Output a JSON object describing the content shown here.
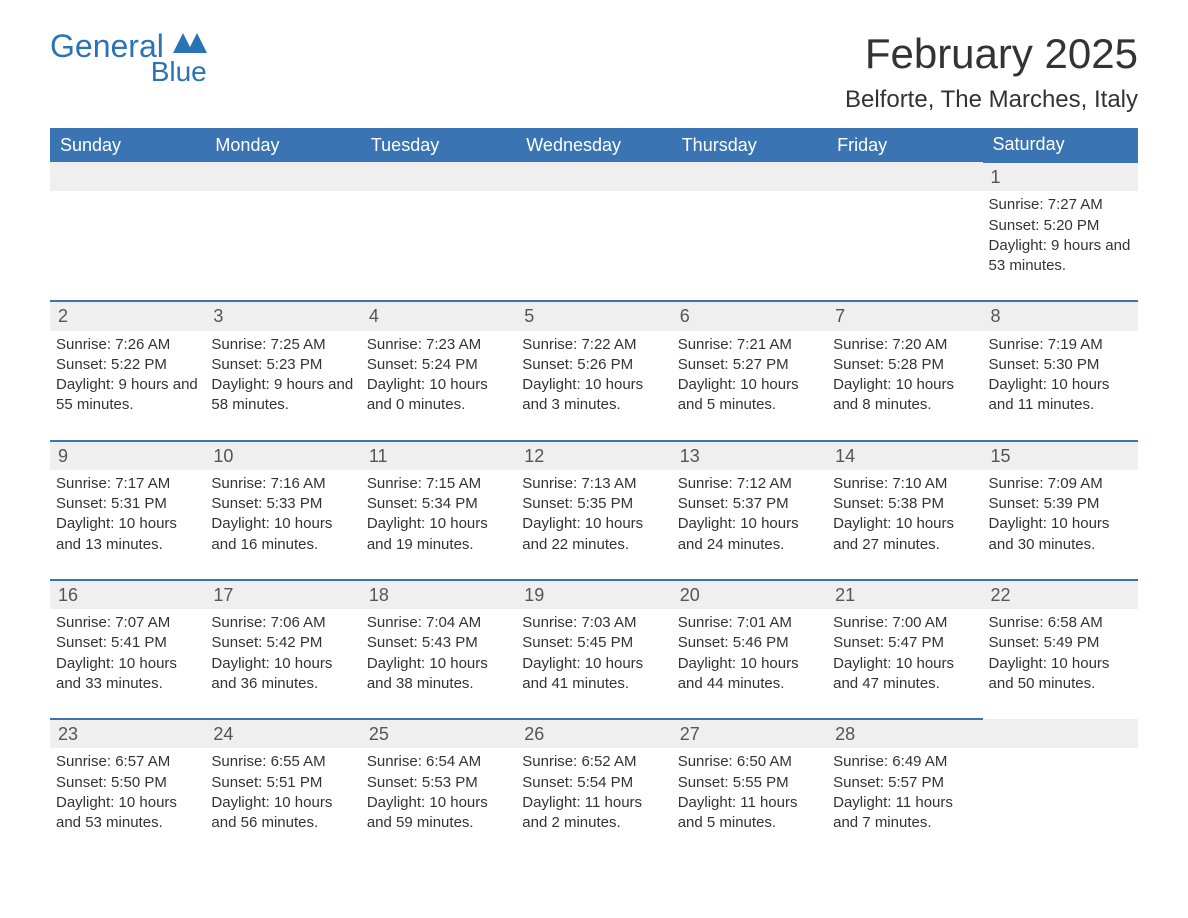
{
  "logo": {
    "word1": "General",
    "word2": "Blue",
    "brand_color": "#2b73b7"
  },
  "header": {
    "month_title": "February 2025",
    "location": "Belforte, The Marches, Italy"
  },
  "calendar": {
    "header_bg": "#3a74b3",
    "header_fg": "#ffffff",
    "daynum_bg": "#efefef",
    "daynum_border": "#3a74b3",
    "columns": [
      "Sunday",
      "Monday",
      "Tuesday",
      "Wednesday",
      "Thursday",
      "Friday",
      "Saturday"
    ],
    "weeks": [
      [
        null,
        null,
        null,
        null,
        null,
        null,
        {
          "day": "1",
          "sunrise": "Sunrise: 7:27 AM",
          "sunset": "Sunset: 5:20 PM",
          "daylight": "Daylight: 9 hours and 53 minutes."
        }
      ],
      [
        {
          "day": "2",
          "sunrise": "Sunrise: 7:26 AM",
          "sunset": "Sunset: 5:22 PM",
          "daylight": "Daylight: 9 hours and 55 minutes."
        },
        {
          "day": "3",
          "sunrise": "Sunrise: 7:25 AM",
          "sunset": "Sunset: 5:23 PM",
          "daylight": "Daylight: 9 hours and 58 minutes."
        },
        {
          "day": "4",
          "sunrise": "Sunrise: 7:23 AM",
          "sunset": "Sunset: 5:24 PM",
          "daylight": "Daylight: 10 hours and 0 minutes."
        },
        {
          "day": "5",
          "sunrise": "Sunrise: 7:22 AM",
          "sunset": "Sunset: 5:26 PM",
          "daylight": "Daylight: 10 hours and 3 minutes."
        },
        {
          "day": "6",
          "sunrise": "Sunrise: 7:21 AM",
          "sunset": "Sunset: 5:27 PM",
          "daylight": "Daylight: 10 hours and 5 minutes."
        },
        {
          "day": "7",
          "sunrise": "Sunrise: 7:20 AM",
          "sunset": "Sunset: 5:28 PM",
          "daylight": "Daylight: 10 hours and 8 minutes."
        },
        {
          "day": "8",
          "sunrise": "Sunrise: 7:19 AM",
          "sunset": "Sunset: 5:30 PM",
          "daylight": "Daylight: 10 hours and 11 minutes."
        }
      ],
      [
        {
          "day": "9",
          "sunrise": "Sunrise: 7:17 AM",
          "sunset": "Sunset: 5:31 PM",
          "daylight": "Daylight: 10 hours and 13 minutes."
        },
        {
          "day": "10",
          "sunrise": "Sunrise: 7:16 AM",
          "sunset": "Sunset: 5:33 PM",
          "daylight": "Daylight: 10 hours and 16 minutes."
        },
        {
          "day": "11",
          "sunrise": "Sunrise: 7:15 AM",
          "sunset": "Sunset: 5:34 PM",
          "daylight": "Daylight: 10 hours and 19 minutes."
        },
        {
          "day": "12",
          "sunrise": "Sunrise: 7:13 AM",
          "sunset": "Sunset: 5:35 PM",
          "daylight": "Daylight: 10 hours and 22 minutes."
        },
        {
          "day": "13",
          "sunrise": "Sunrise: 7:12 AM",
          "sunset": "Sunset: 5:37 PM",
          "daylight": "Daylight: 10 hours and 24 minutes."
        },
        {
          "day": "14",
          "sunrise": "Sunrise: 7:10 AM",
          "sunset": "Sunset: 5:38 PM",
          "daylight": "Daylight: 10 hours and 27 minutes."
        },
        {
          "day": "15",
          "sunrise": "Sunrise: 7:09 AM",
          "sunset": "Sunset: 5:39 PM",
          "daylight": "Daylight: 10 hours and 30 minutes."
        }
      ],
      [
        {
          "day": "16",
          "sunrise": "Sunrise: 7:07 AM",
          "sunset": "Sunset: 5:41 PM",
          "daylight": "Daylight: 10 hours and 33 minutes."
        },
        {
          "day": "17",
          "sunrise": "Sunrise: 7:06 AM",
          "sunset": "Sunset: 5:42 PM",
          "daylight": "Daylight: 10 hours and 36 minutes."
        },
        {
          "day": "18",
          "sunrise": "Sunrise: 7:04 AM",
          "sunset": "Sunset: 5:43 PM",
          "daylight": "Daylight: 10 hours and 38 minutes."
        },
        {
          "day": "19",
          "sunrise": "Sunrise: 7:03 AM",
          "sunset": "Sunset: 5:45 PM",
          "daylight": "Daylight: 10 hours and 41 minutes."
        },
        {
          "day": "20",
          "sunrise": "Sunrise: 7:01 AM",
          "sunset": "Sunset: 5:46 PM",
          "daylight": "Daylight: 10 hours and 44 minutes."
        },
        {
          "day": "21",
          "sunrise": "Sunrise: 7:00 AM",
          "sunset": "Sunset: 5:47 PM",
          "daylight": "Daylight: 10 hours and 47 minutes."
        },
        {
          "day": "22",
          "sunrise": "Sunrise: 6:58 AM",
          "sunset": "Sunset: 5:49 PM",
          "daylight": "Daylight: 10 hours and 50 minutes."
        }
      ],
      [
        {
          "day": "23",
          "sunrise": "Sunrise: 6:57 AM",
          "sunset": "Sunset: 5:50 PM",
          "daylight": "Daylight: 10 hours and 53 minutes."
        },
        {
          "day": "24",
          "sunrise": "Sunrise: 6:55 AM",
          "sunset": "Sunset: 5:51 PM",
          "daylight": "Daylight: 10 hours and 56 minutes."
        },
        {
          "day": "25",
          "sunrise": "Sunrise: 6:54 AM",
          "sunset": "Sunset: 5:53 PM",
          "daylight": "Daylight: 10 hours and 59 minutes."
        },
        {
          "day": "26",
          "sunrise": "Sunrise: 6:52 AM",
          "sunset": "Sunset: 5:54 PM",
          "daylight": "Daylight: 11 hours and 2 minutes."
        },
        {
          "day": "27",
          "sunrise": "Sunrise: 6:50 AM",
          "sunset": "Sunset: 5:55 PM",
          "daylight": "Daylight: 11 hours and 5 minutes."
        },
        {
          "day": "28",
          "sunrise": "Sunrise: 6:49 AM",
          "sunset": "Sunset: 5:57 PM",
          "daylight": "Daylight: 11 hours and 7 minutes."
        },
        null
      ]
    ]
  }
}
